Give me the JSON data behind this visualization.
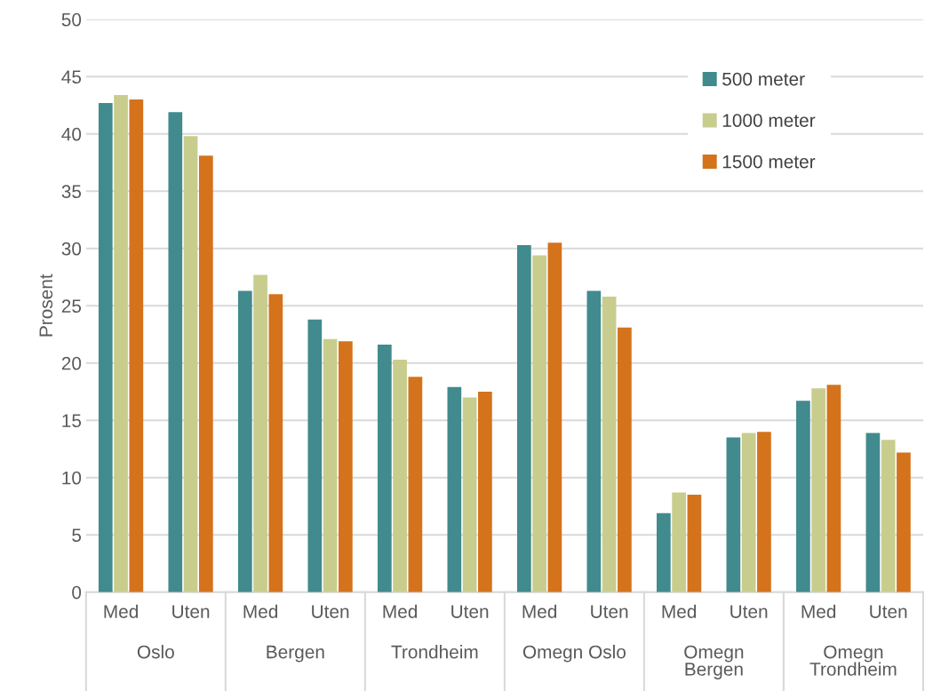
{
  "chart_data": {
    "type": "bar",
    "ylabel": "Prosent",
    "categories": [
      "Med",
      "Uten",
      "Med",
      "Uten",
      "Med",
      "Uten",
      "Med",
      "Uten",
      "Med",
      "Uten",
      "Med",
      "Uten"
    ],
    "annotations": [
      "Oslo",
      "Bergen",
      "Trondheim",
      "Omegn Oslo",
      "Omegn\nBergen",
      "Omegn\nTrondheim"
    ],
    "series": [
      {
        "name": "500 meter",
        "color": "#418a8d",
        "values": [
          42.7,
          41.9,
          26.3,
          23.8,
          21.6,
          17.9,
          30.3,
          26.3,
          6.9,
          13.5,
          16.7,
          13.9
        ]
      },
      {
        "name": "1000 meter",
        "color": "#c8cd8d",
        "values": [
          43.4,
          39.8,
          27.7,
          22.1,
          20.3,
          17.0,
          29.4,
          25.8,
          8.7,
          13.9,
          17.8,
          13.3
        ]
      },
      {
        "name": "1500 meter",
        "color": "#d4731c",
        "values": [
          43.0,
          38.1,
          26.0,
          21.9,
          18.8,
          17.5,
          30.5,
          23.1,
          8.5,
          14.0,
          18.1,
          12.2
        ]
      }
    ],
    "ylim": [
      0,
      50
    ],
    "yticks": [
      0,
      5,
      10,
      15,
      20,
      25,
      30,
      35,
      40,
      45,
      50
    ],
    "grid": "y",
    "legend": "top right"
  }
}
